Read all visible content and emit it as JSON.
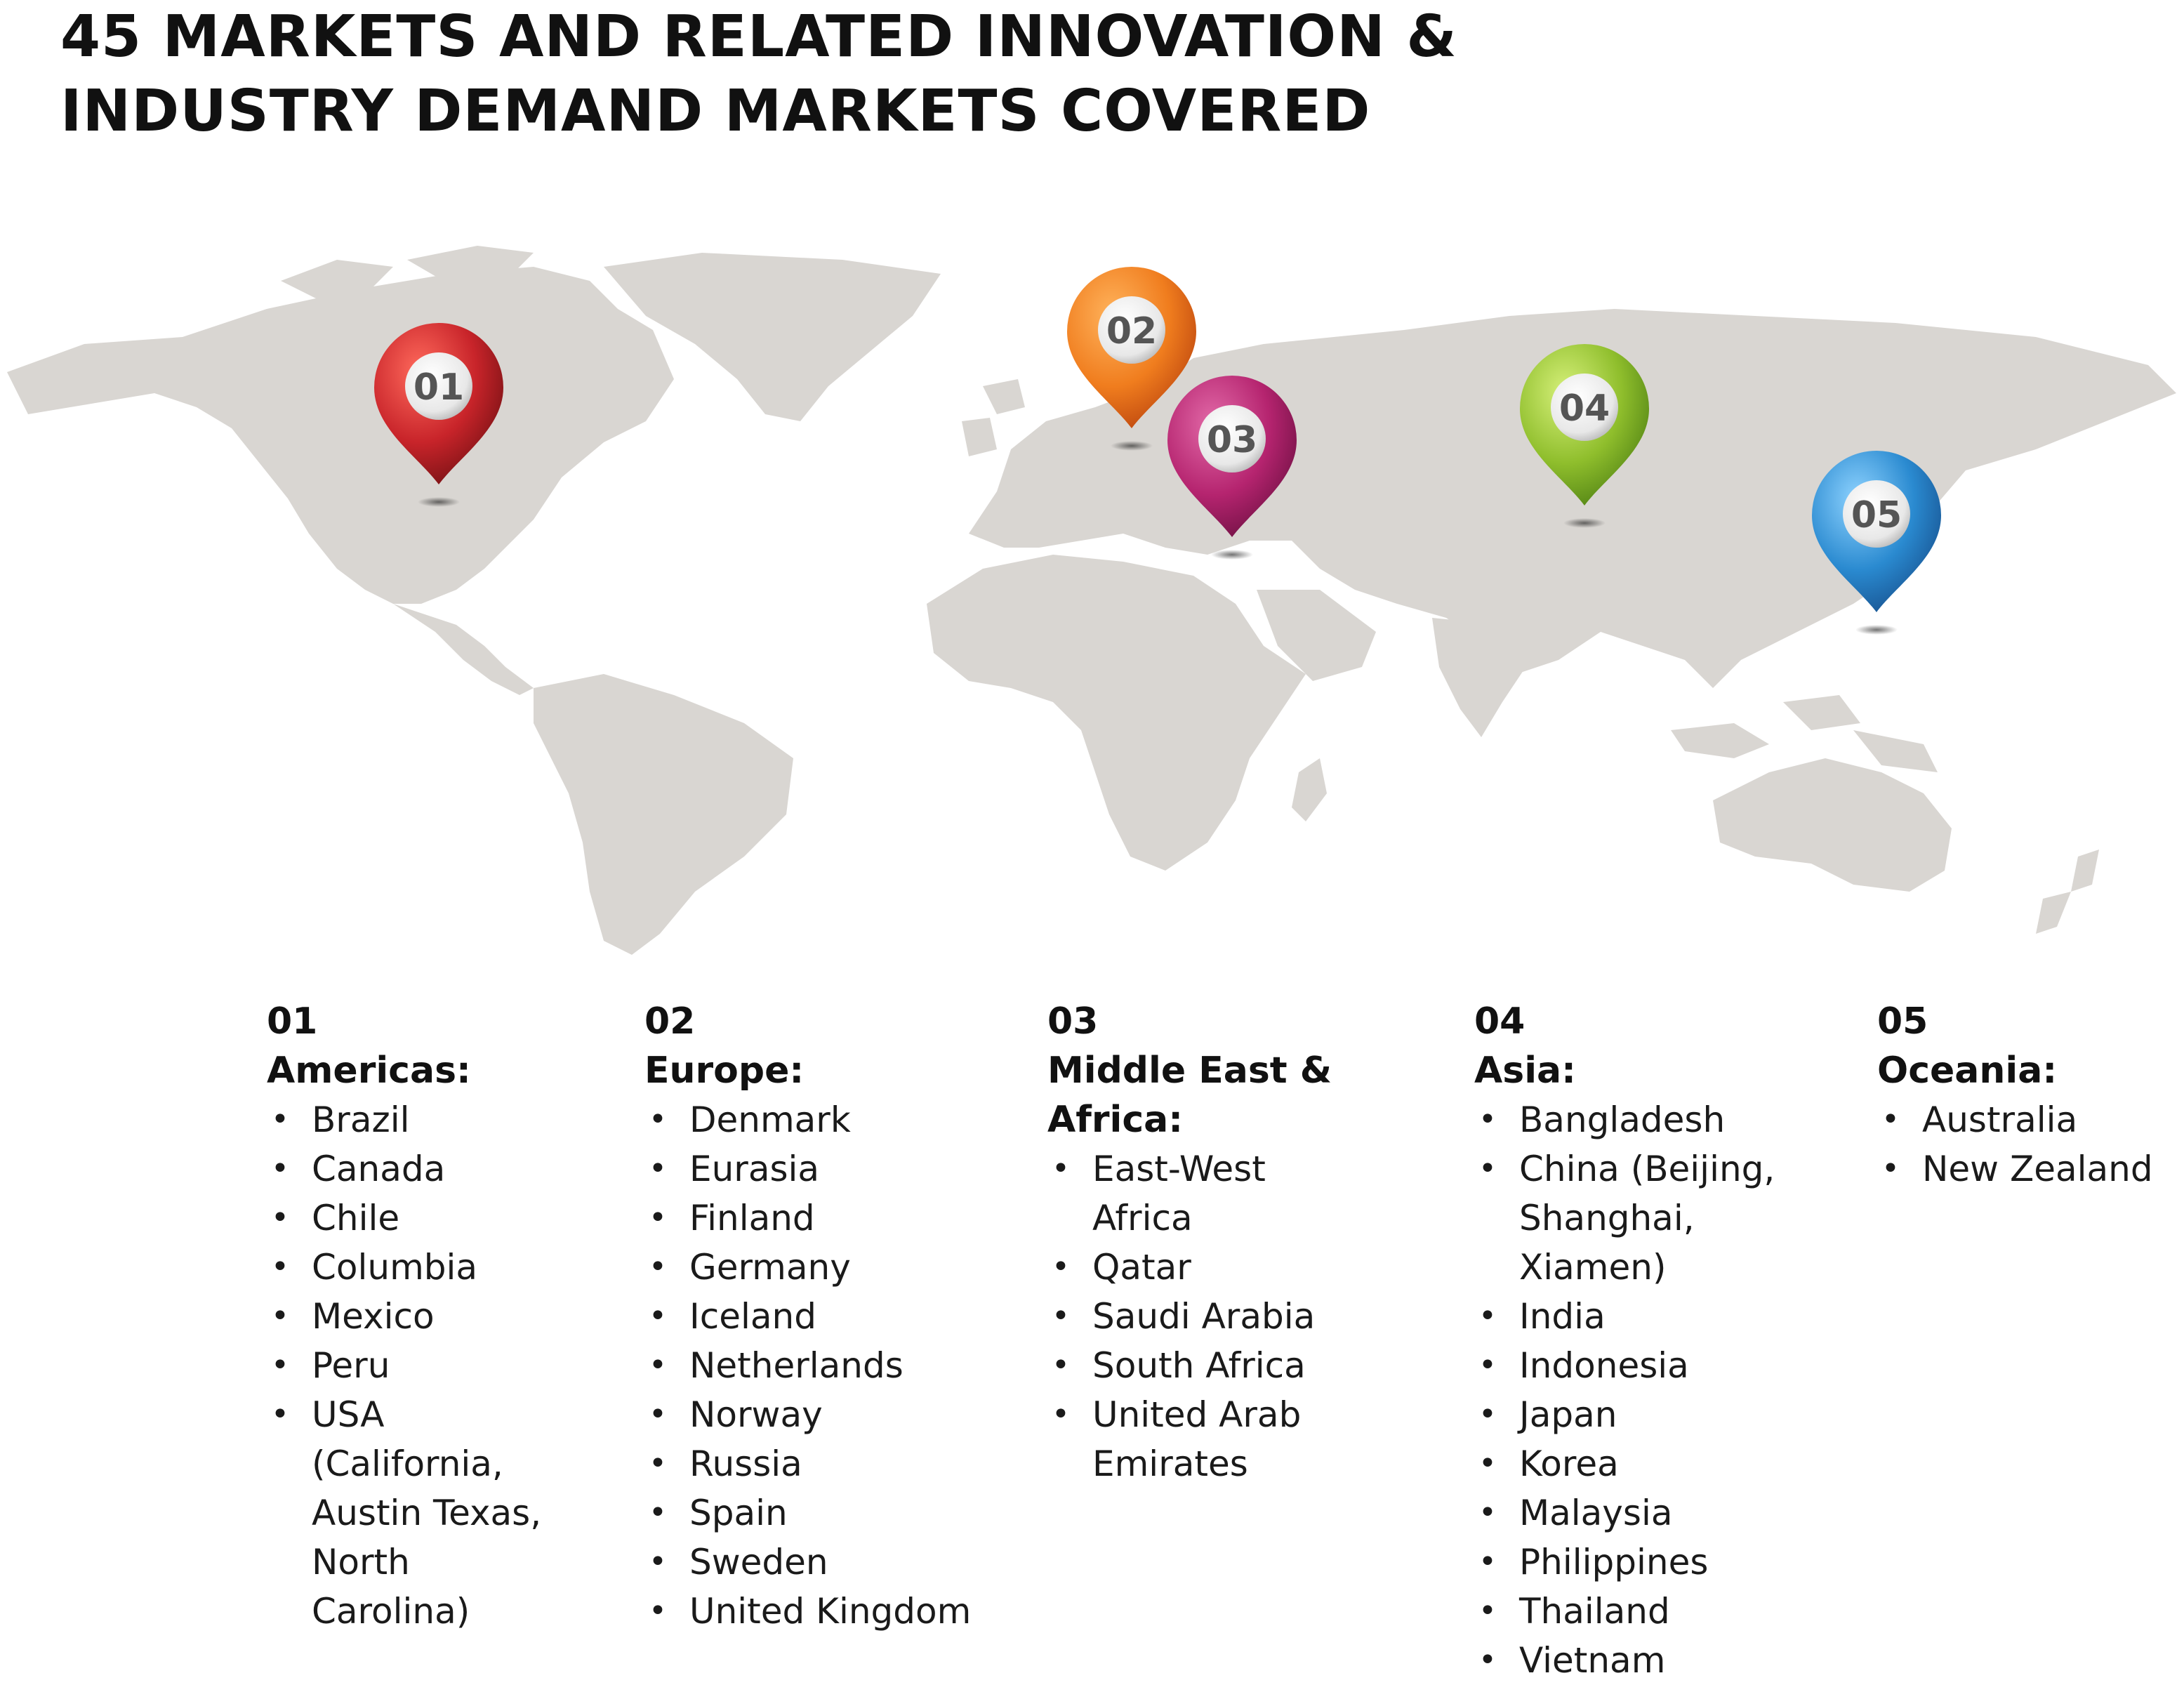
{
  "title": {
    "line1": "45 MARKETS AND RELATED INNOVATION &",
    "line2": "INDUSTRY DEMAND MARKETS COVERED"
  },
  "pins": [
    {
      "label": "01",
      "color": "#c8242a",
      "dark": "#6e0f12"
    },
    {
      "label": "02",
      "color": "#f07d1e",
      "dark": "#b8410d"
    },
    {
      "label": "03",
      "color": "#b5246f",
      "dark": "#6a0f40"
    },
    {
      "label": "04",
      "color": "#8fbe2c",
      "dark": "#4b7d12"
    },
    {
      "label": "05",
      "color": "#2a8ad0",
      "dark": "#164d8a"
    }
  ],
  "regions": [
    {
      "num": "01",
      "name": "Americas:",
      "items": [
        "Brazil",
        "Canada",
        "Chile",
        "Columbia",
        "Mexico",
        "Peru",
        "USA\n(California,\nAustin Texas,\nNorth\nCarolina)"
      ]
    },
    {
      "num": "02",
      "name": "Europe:",
      "items": [
        "Denmark",
        "Eurasia",
        "Finland",
        "Germany",
        "Iceland",
        "Netherlands",
        "Norway",
        "Russia",
        "Spain",
        "Sweden",
        "United Kingdom"
      ]
    },
    {
      "num": "03",
      "name": "Middle East &\nAfrica:",
      "items": [
        "East-West\nAfrica",
        "Qatar",
        "Saudi Arabia",
        "South Africa",
        "United Arab\nEmirates"
      ]
    },
    {
      "num": "04",
      "name": "Asia:",
      "items": [
        "Bangladesh",
        "China (Beijing,\nShanghai,\nXiamen)",
        "India",
        "Indonesia",
        "Japan",
        "Korea",
        "Malaysia",
        "Philippines",
        "Thailand",
        "Vietnam"
      ]
    },
    {
      "num": "05",
      "name": "Oceania:",
      "items": [
        "Australia",
        "New Zealand"
      ]
    }
  ]
}
